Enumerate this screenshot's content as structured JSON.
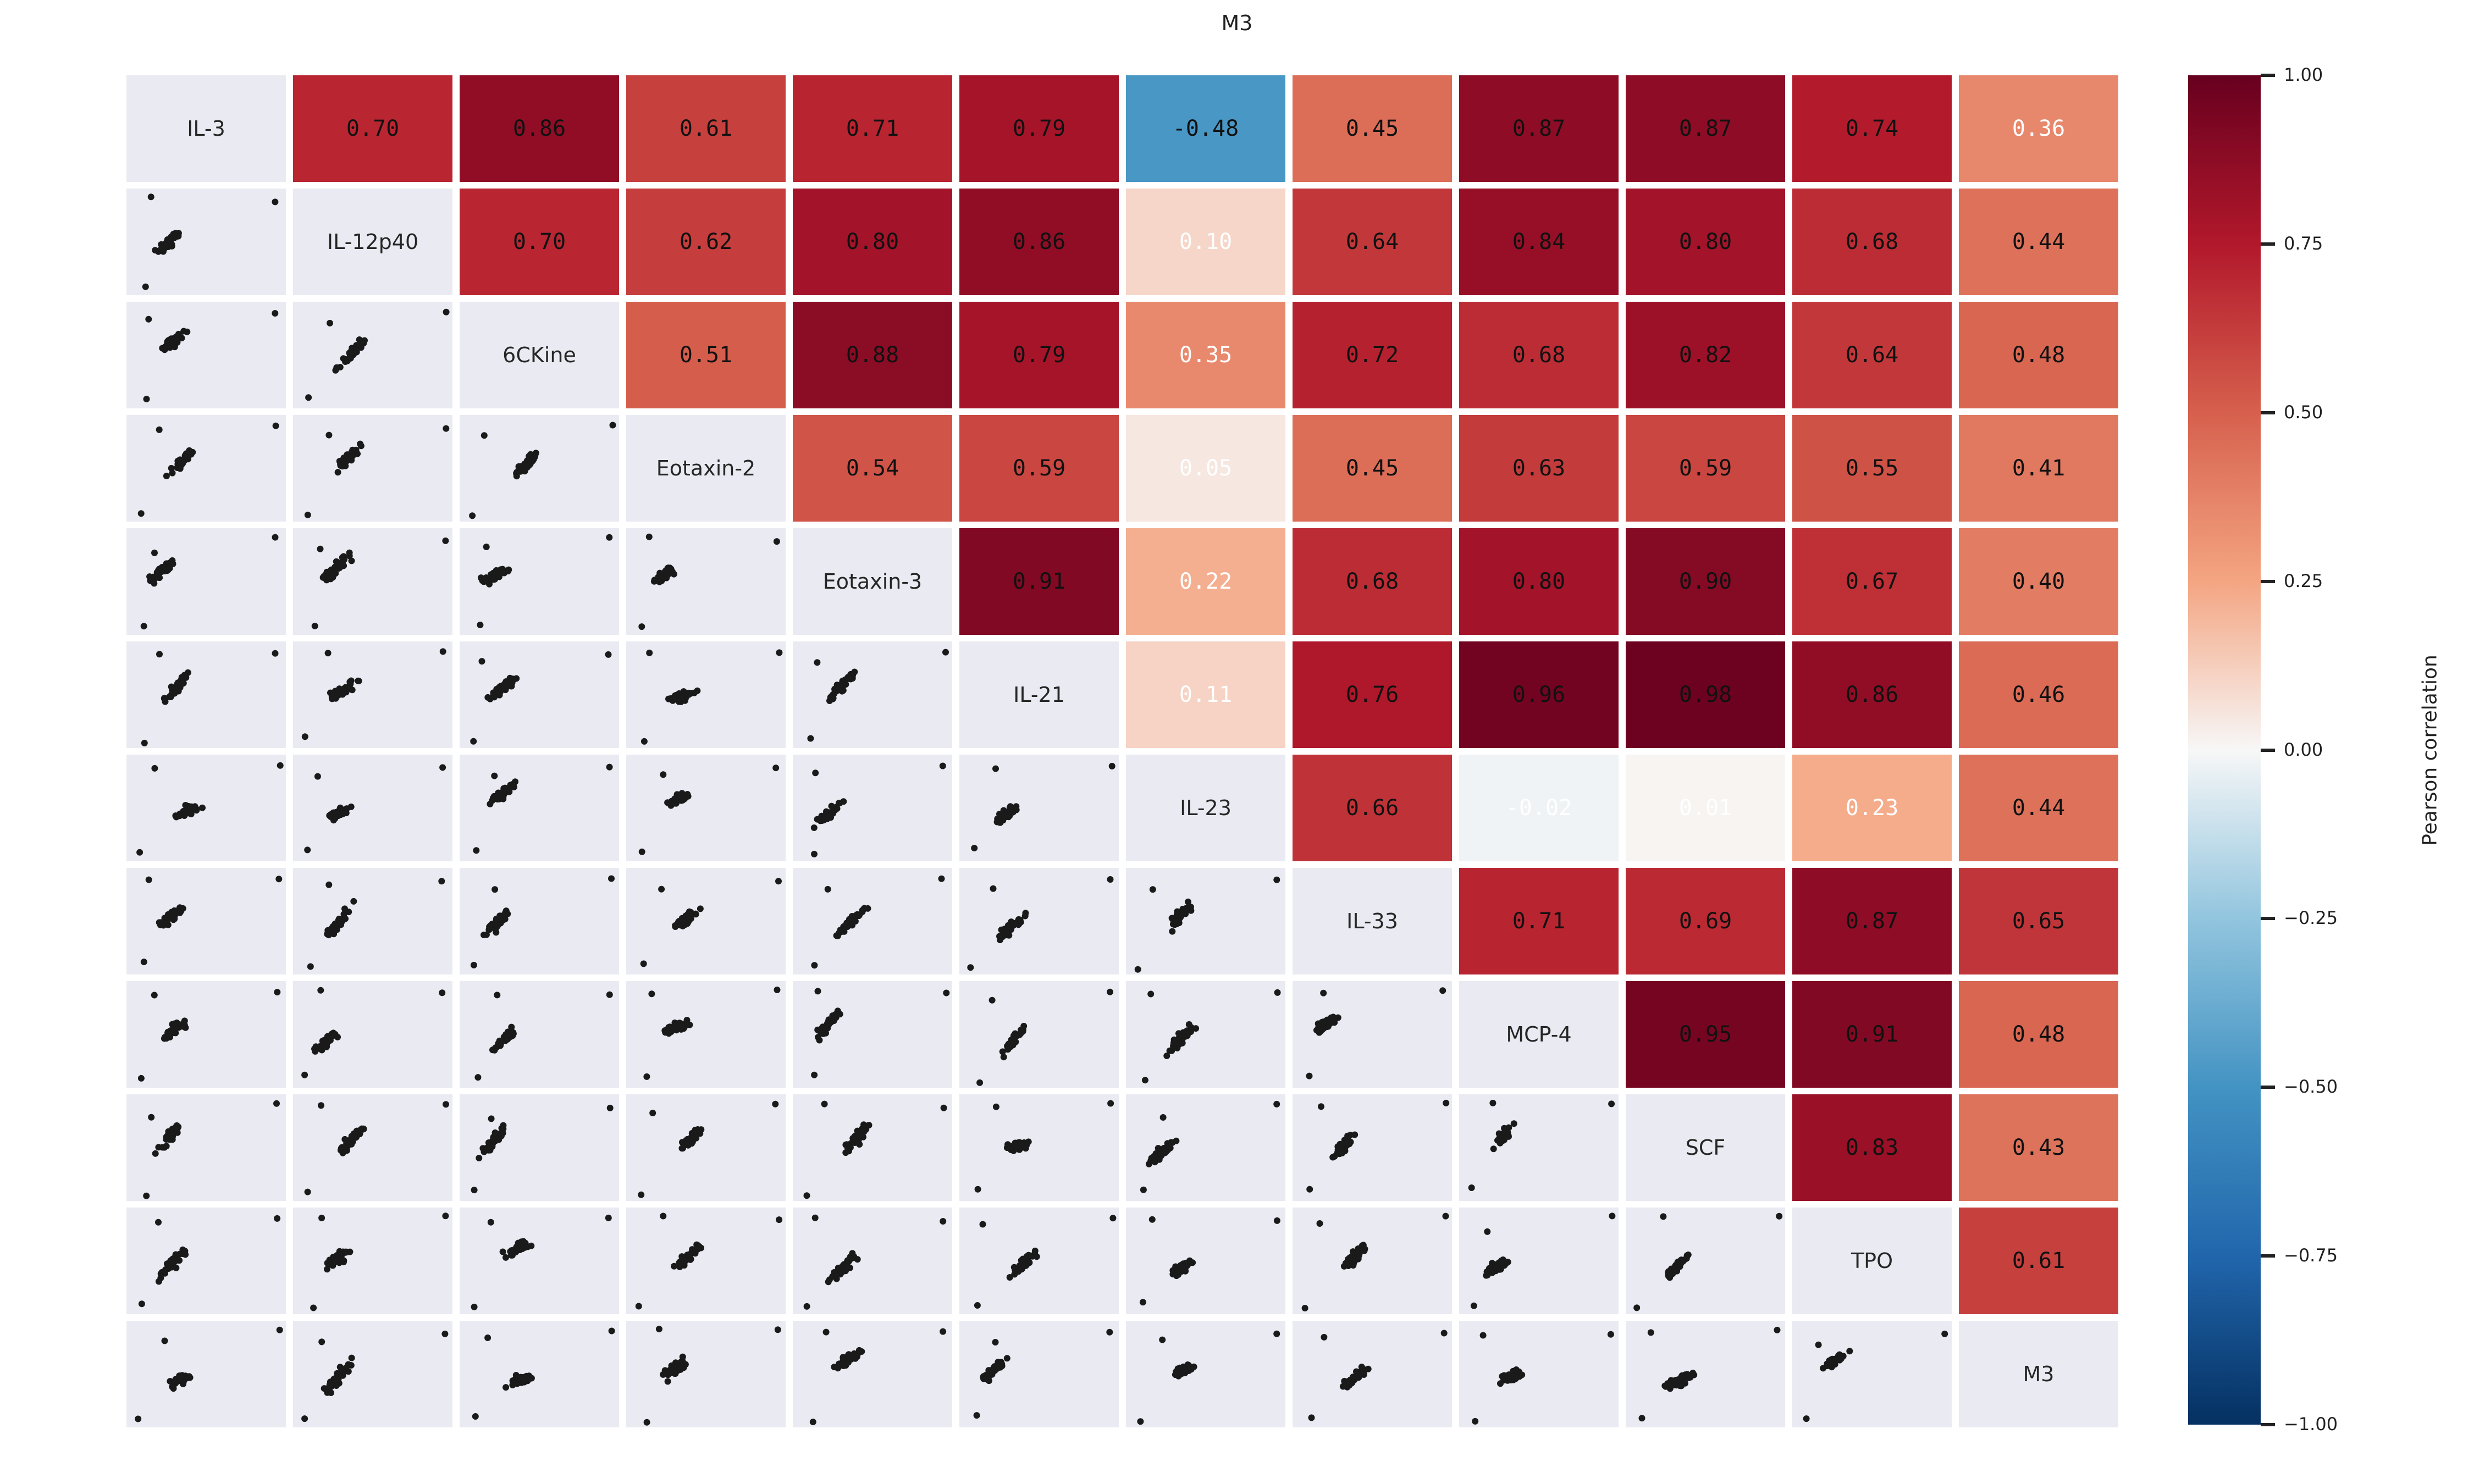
{
  "chart_data": {
    "type": "heatmap",
    "title": "M3",
    "variables": [
      "IL-3",
      "IL-12p40",
      "6CKine",
      "Eotaxin-2",
      "Eotaxin-3",
      "IL-21",
      "IL-23",
      "IL-33",
      "MCP-4",
      "SCF",
      "TPO",
      "M3"
    ],
    "upper_triangle": [
      [
        "0.70",
        "0.86",
        "0.61",
        "0.71",
        "0.79",
        "-0.48",
        "0.45",
        "0.87",
        "0.87",
        "0.74",
        "0.36"
      ],
      [
        "0.70",
        "0.62",
        "0.80",
        "0.86",
        "0.10",
        "0.64",
        "0.84",
        "0.80",
        "0.68",
        "0.44"
      ],
      [
        "0.51",
        "0.88",
        "0.79",
        "0.35",
        "0.72",
        "0.68",
        "0.82",
        "0.64",
        "0.48"
      ],
      [
        "0.54",
        "0.59",
        "0.05",
        "0.45",
        "0.63",
        "0.59",
        "0.55",
        "0.41"
      ],
      [
        "0.91",
        "0.22",
        "0.68",
        "0.80",
        "0.90",
        "0.67",
        "0.40"
      ],
      [
        "0.11",
        "0.76",
        "0.96",
        "0.98",
        "0.86",
        "0.46"
      ],
      [
        "0.66",
        "-0.02",
        "0.01",
        "0.23",
        "0.44"
      ],
      [
        "0.71",
        "0.69",
        "0.87",
        "0.65"
      ],
      [
        "0.95",
        "0.91",
        "0.48"
      ],
      [
        "0.83",
        "0.43"
      ],
      [
        "0.61"
      ]
    ],
    "lower_triangle": "pairwise scatter plots",
    "colorbar": {
      "label": "Pearson correlation",
      "range": [
        -1,
        1
      ],
      "ticks": [
        "1.00",
        "0.75",
        "0.50",
        "0.25",
        "0.00",
        "−0.25",
        "−0.50",
        "−0.75",
        "−1.00"
      ],
      "colormap": "RdBu_r"
    },
    "colors": {
      "cell_background": "#eaeaf2",
      "point": "#1a1a1a"
    }
  }
}
